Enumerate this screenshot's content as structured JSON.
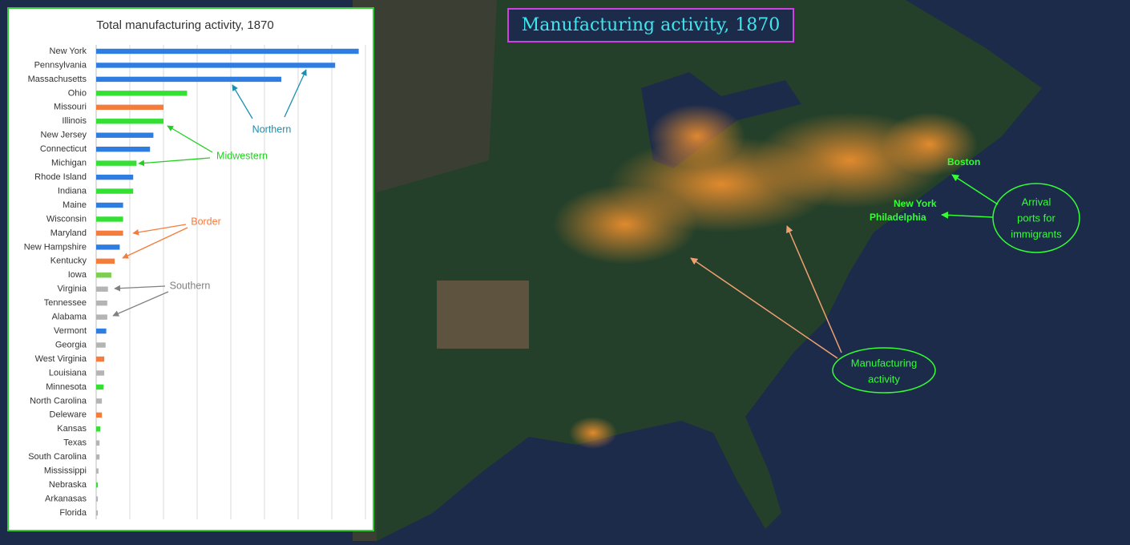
{
  "chart_data": {
    "type": "bar",
    "orientation": "horizontal",
    "title": "Total manufacturing activity, 1870",
    "categories": [
      "New York",
      "Pennsylvania",
      "Massachusetts",
      "Ohio",
      "Missouri",
      "Illinois",
      "New Jersey",
      "Connecticut",
      "Michigan",
      "Rhode Island",
      "Indiana",
      "Maine",
      "Wisconsin",
      "Maryland",
      "New Hampshire",
      "Kentucky",
      "Iowa",
      "Virginia",
      "Tennessee",
      "Alabama",
      "Vermont",
      "Georgia",
      "West Virginia",
      "Louisiana",
      "Minnesota",
      "North Carolina",
      "Deleware",
      "Kansas",
      "Texas",
      "South Carolina",
      "Mississippi",
      "Nebraska",
      "Arkanasas",
      "Florida"
    ],
    "values": [
      7.8,
      7.1,
      5.5,
      2.7,
      2.0,
      2.0,
      1.7,
      1.6,
      1.2,
      1.1,
      1.1,
      0.8,
      0.8,
      0.8,
      0.7,
      0.55,
      0.45,
      0.35,
      0.33,
      0.33,
      0.3,
      0.28,
      0.24,
      0.24,
      0.22,
      0.17,
      0.17,
      0.12,
      0.1,
      0.1,
      0.07,
      0.05,
      0.05,
      0.05
    ],
    "colors": [
      "#2f7de1",
      "#2f7de1",
      "#2f7de1",
      "#33e033",
      "#f47c3c",
      "#33e033",
      "#2f7de1",
      "#2f7de1",
      "#33e033",
      "#2f7de1",
      "#33e033",
      "#2f7de1",
      "#33e033",
      "#f47c3c",
      "#2f7de1",
      "#f47c3c",
      "#7ccf4f",
      "#b4b4b4",
      "#b4b4b4",
      "#b4b4b4",
      "#2f7de1",
      "#b4b4b4",
      "#f47c3c",
      "#b4b4b4",
      "#33e033",
      "#b4b4b4",
      "#f47c3c",
      "#33e033",
      "#b4b4b4",
      "#b4b4b4",
      "#b4b4b4",
      "#33e033",
      "#b4b4b4",
      "#b4b4b4"
    ],
    "xlim": [
      0,
      8
    ],
    "xticks": [
      0,
      1,
      2,
      3,
      4,
      5,
      6,
      7,
      8
    ],
    "grid": true,
    "annotations": [
      {
        "text": "Northern",
        "color": "#1a8fb0"
      },
      {
        "text": "Midwestern",
        "color": "#22d022"
      },
      {
        "text": "Border",
        "color": "#f47c3c"
      },
      {
        "text": "Southern",
        "color": "#808080"
      }
    ]
  },
  "map": {
    "title": "Manufacturing activity, 1870",
    "cities": [
      "Boston",
      "New York",
      "Philadelphia"
    ],
    "callouts": [
      {
        "lines": [
          "Arrival",
          "ports for",
          "immigrants"
        ]
      },
      {
        "lines": [
          "Manufacturing",
          "activity"
        ]
      }
    ]
  }
}
